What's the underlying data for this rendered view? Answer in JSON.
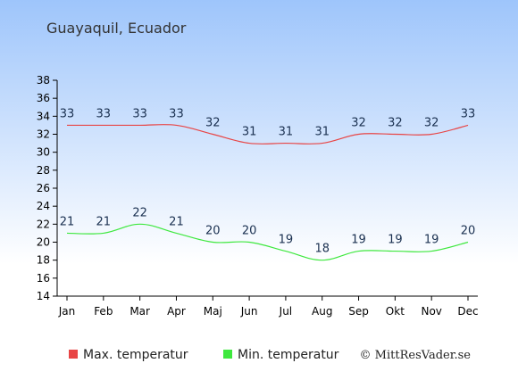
{
  "chart_data": {
    "type": "line",
    "title": "Guayaquil, Ecuador",
    "categories": [
      "Jan",
      "Feb",
      "Mar",
      "Apr",
      "Maj",
      "Jun",
      "Jul",
      "Aug",
      "Sep",
      "Okt",
      "Nov",
      "Dec"
    ],
    "series": [
      {
        "name": "Max. temperatur",
        "values": [
          33,
          33,
          33,
          33,
          32,
          31,
          31,
          31,
          32,
          32,
          32,
          33
        ],
        "color": "#e84545"
      },
      {
        "name": "Min. temperatur",
        "values": [
          21,
          21,
          22,
          21,
          20,
          20,
          19,
          18,
          19,
          19,
          19,
          20
        ],
        "color": "#3ee83e"
      }
    ],
    "ylim": [
      14,
      38
    ],
    "yticks": [
      14,
      16,
      18,
      20,
      22,
      24,
      26,
      28,
      30,
      32,
      34,
      36,
      38
    ],
    "grid": false,
    "legend_position": "bottom"
  },
  "credit": "© MittResVader.se",
  "colors": {
    "background_top": "#9ec5fb",
    "background_bottom": "#ffffff",
    "label_text": "#1a3050"
  }
}
